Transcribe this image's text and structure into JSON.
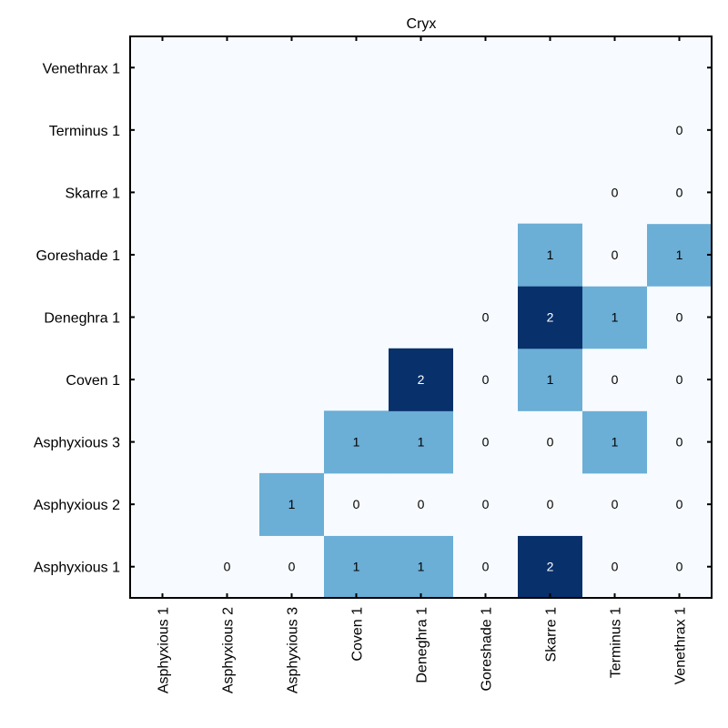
{
  "chart_data": {
    "type": "heatmap",
    "title": "Cryx",
    "x_categories": [
      "Asphyxious 1",
      "Asphyxious 2",
      "Asphyxious 3",
      "Coven 1",
      "Deneghra 1",
      "Goreshade 1",
      "Skarre 1",
      "Terminus 1",
      "Venethrax 1"
    ],
    "y_categories": [
      "Asphyxious 1",
      "Asphyxious 2",
      "Asphyxious 3",
      "Coven 1",
      "Deneghra 1",
      "Goreshade 1",
      "Skarre 1",
      "Terminus 1",
      "Venethrax 1"
    ],
    "values": [
      [
        null,
        0,
        0,
        1,
        1,
        0,
        2,
        0,
        0
      ],
      [
        null,
        null,
        1,
        0,
        0,
        0,
        0,
        0,
        0
      ],
      [
        null,
        null,
        null,
        1,
        1,
        0,
        0,
        1,
        0
      ],
      [
        null,
        null,
        null,
        null,
        2,
        0,
        1,
        0,
        0
      ],
      [
        null,
        null,
        null,
        null,
        null,
        0,
        2,
        1,
        0
      ],
      [
        null,
        null,
        null,
        null,
        null,
        null,
        1,
        0,
        1
      ],
      [
        null,
        null,
        null,
        null,
        null,
        null,
        null,
        0,
        0
      ],
      [
        null,
        null,
        null,
        null,
        null,
        null,
        null,
        null,
        0
      ],
      [
        null,
        null,
        null,
        null,
        null,
        null,
        null,
        null,
        null
      ]
    ],
    "color_scale": {
      "0": "#f7fbff",
      "1": "#6baed6",
      "2": "#08306b",
      "empty": "#f7fbff"
    },
    "text_colors": {
      "light_bg": "#000000",
      "dark_bg": "#ffffff"
    }
  }
}
